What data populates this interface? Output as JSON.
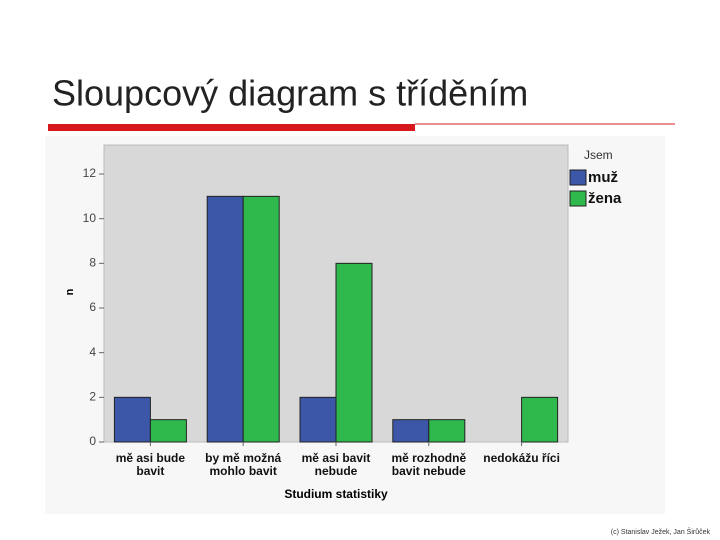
{
  "slide_title": "Sloupcový diagram s tříděním",
  "footer": "(c) Stanislav Ježek, Jan Širůček",
  "chart_data": {
    "type": "bar",
    "categories": [
      "mě asi bude bavit",
      "by mě možná mohlo bavit",
      "mě asi bavit nebude",
      "mě rozhodně bavit nebude",
      "nedokážu říci"
    ],
    "series": [
      {
        "name": "muž",
        "color": "#3c57a8",
        "values": [
          2,
          11,
          2,
          1,
          0
        ]
      },
      {
        "name": "žena",
        "color": "#2fb84c",
        "values": [
          1,
          11,
          8,
          1,
          2
        ]
      }
    ],
    "x_label": "Studium statistiky",
    "y_label": "n",
    "legend_title": "Jsem",
    "legend_position": "right",
    "ylim": [
      0,
      13.3
    ],
    "yticks": [
      0,
      2,
      4,
      6,
      8,
      10,
      12
    ]
  }
}
